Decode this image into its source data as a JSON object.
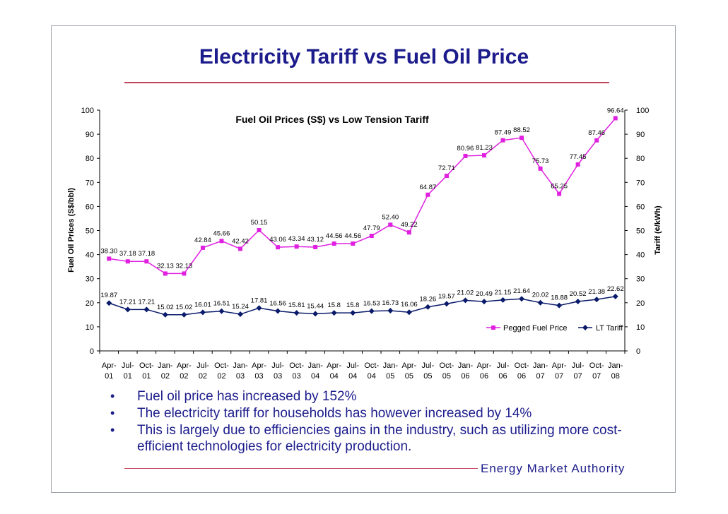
{
  "slide": {
    "title": "Electricity Tariff vs Fuel Oil Price",
    "bullets": [
      "Fuel oil price has increased by 152%",
      "The electricity tariff for households has however increased by 14%",
      "This is largely due to efficiencies gains in the industry, such as utilizing more cost-efficient technologies for electricity production."
    ],
    "footer": "Energy Market Authority"
  },
  "colors": {
    "title": "#1c1c8c",
    "accent": "#c0475e",
    "fuel": "#e020e0",
    "tariff": "#0a1a6a"
  },
  "chart_data": {
    "type": "line",
    "title": "Fuel Oil Prices (S$) vs Low Tension Tariff",
    "ylabel": "Fuel Oil Prices (S$/bbl)",
    "y2label": "Tariff (¢/kWh)",
    "ylim": [
      0,
      100
    ],
    "y2lim": [
      0,
      100
    ],
    "yticks": [
      0,
      10,
      20,
      30,
      40,
      50,
      60,
      70,
      80,
      90,
      100
    ],
    "legend_position": "lower-right",
    "categories": [
      [
        "Apr-",
        "01"
      ],
      [
        "Jul-",
        "01"
      ],
      [
        "Oct-",
        "01"
      ],
      [
        "Jan-",
        "02"
      ],
      [
        "Apr-",
        "02"
      ],
      [
        "Jul-",
        "02"
      ],
      [
        "Oct-",
        "02"
      ],
      [
        "Jan-",
        "03"
      ],
      [
        "Apr-",
        "03"
      ],
      [
        "Jul-",
        "03"
      ],
      [
        "Oct-",
        "03"
      ],
      [
        "Jan-",
        "04"
      ],
      [
        "Apr-",
        "04"
      ],
      [
        "Jul-",
        "04"
      ],
      [
        "Oct-",
        "04"
      ],
      [
        "Jan-",
        "05"
      ],
      [
        "Apr-",
        "05"
      ],
      [
        "Jul-",
        "05"
      ],
      [
        "Oct-",
        "05"
      ],
      [
        "Jan-",
        "06"
      ],
      [
        "Apr-",
        "06"
      ],
      [
        "Jul-",
        "06"
      ],
      [
        "Oct-",
        "06"
      ],
      [
        "Jan-",
        "07"
      ],
      [
        "Apr-",
        "07"
      ],
      [
        "Jul-",
        "07"
      ],
      [
        "Oct-",
        "07"
      ],
      [
        "Jan-",
        "08"
      ]
    ],
    "series": [
      {
        "name": "Pegged Fuel Price",
        "marker": "square",
        "values": [
          38.3,
          37.18,
          37.18,
          32.13,
          32.13,
          42.84,
          45.66,
          42.42,
          50.15,
          43.06,
          43.34,
          43.12,
          44.56,
          44.56,
          47.79,
          52.4,
          49.22,
          64.87,
          72.71,
          80.96,
          81.23,
          87.49,
          88.52,
          75.73,
          65.25,
          77.45,
          87.46,
          96.64
        ],
        "labels": [
          "38.30",
          "37.18",
          "37.18",
          "32.13",
          "32.13",
          "42.84",
          "45.66",
          "42.42",
          "50.15",
          "43.06",
          "43.34",
          "43.12",
          "44.56",
          "44.56",
          "47.79",
          "52.40",
          "49.22",
          "64.87",
          "72.71",
          "80.96",
          "81.23",
          "87.49",
          "88.52",
          "75.73",
          "65.25",
          "77.45",
          "87.46",
          "96.64"
        ]
      },
      {
        "name": "LT Tariff",
        "marker": "diamond",
        "values": [
          19.87,
          17.21,
          17.21,
          15.02,
          15.02,
          16.01,
          16.51,
          15.24,
          17.81,
          16.56,
          15.81,
          15.44,
          15.8,
          15.8,
          16.53,
          16.73,
          16.06,
          18.26,
          19.57,
          21.02,
          20.49,
          21.15,
          21.64,
          20.02,
          18.88,
          20.52,
          21.38,
          22.62
        ],
        "labels": [
          "19.87",
          "17.21",
          "17.21",
          "15.02",
          "15.02",
          "16.01",
          "16.51",
          "15.24",
          "17.81",
          "16.56",
          "15.81",
          "15.44",
          "15.8",
          "15.8",
          "16.53",
          "16.73",
          "16.06",
          "18.26",
          "19.57",
          "21.02",
          "20.49",
          "21.15",
          "21.64",
          "20.02",
          "18.88",
          "20.52",
          "21.38",
          "22.62"
        ]
      }
    ]
  }
}
